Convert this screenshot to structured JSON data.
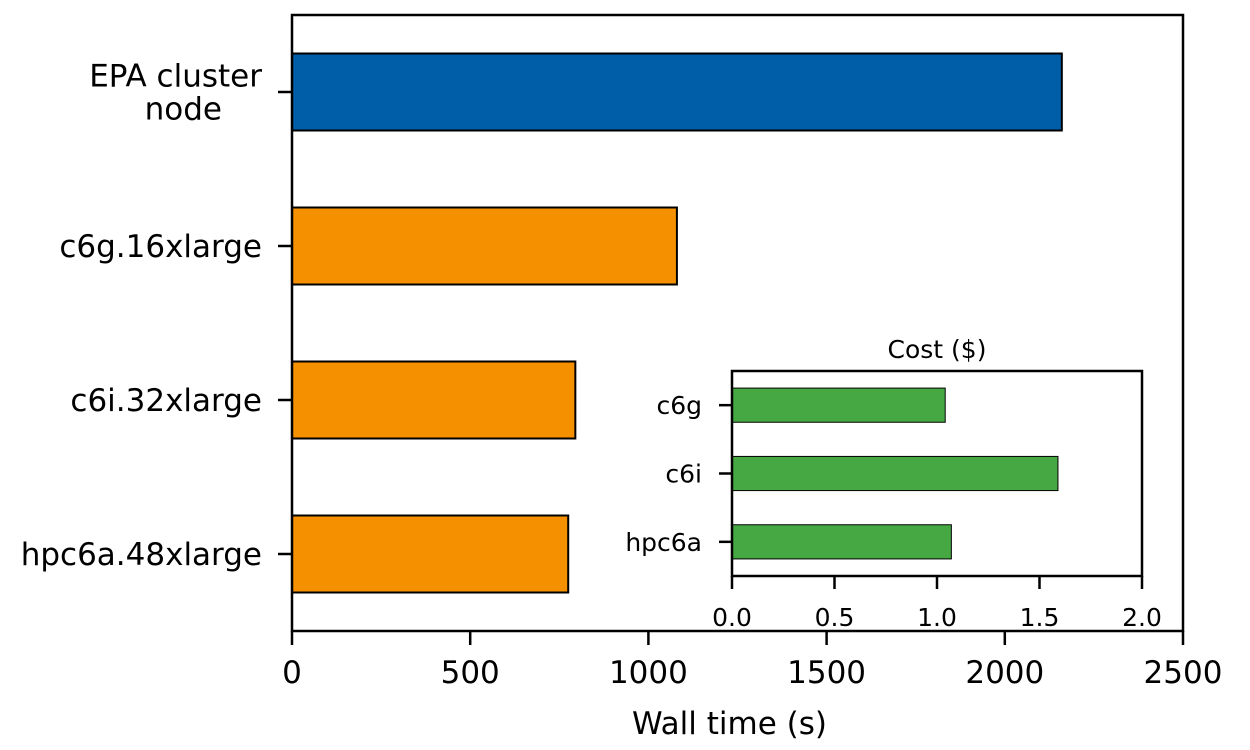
{
  "chart_data": [
    {
      "id": "main",
      "type": "bar",
      "orientation": "horizontal",
      "title": "",
      "xlabel": "Wall time (s)",
      "ylabel": "",
      "xlim": [
        0,
        2500
      ],
      "xticks": [
        0,
        500,
        1000,
        1500,
        2000,
        2500
      ],
      "categories": [
        [
          "EPA cluster",
          "node"
        ],
        [
          "c6g.16xlarge"
        ],
        [
          "c6i.32xlarge"
        ],
        [
          "hpc6a.48xlarge"
        ]
      ],
      "values": [
        2160,
        1080,
        795,
        775
      ],
      "colors": [
        "#005EA8",
        "#F59100",
        "#F59100",
        "#F59100"
      ],
      "grid": false
    },
    {
      "id": "inset",
      "type": "bar",
      "orientation": "horizontal",
      "title": "Cost ($)",
      "xlabel": "",
      "ylabel": "",
      "xlim": [
        0.0,
        2.0
      ],
      "xticks": [
        "0.0",
        "0.5",
        "1.0",
        "1.5",
        "2.0"
      ],
      "categories": [
        "c6g",
        "c6i",
        "hpc6a"
      ],
      "values": [
        1.04,
        1.59,
        1.07
      ],
      "colors": [
        "#46A843",
        "#46A843",
        "#46A843"
      ],
      "grid": false
    }
  ]
}
